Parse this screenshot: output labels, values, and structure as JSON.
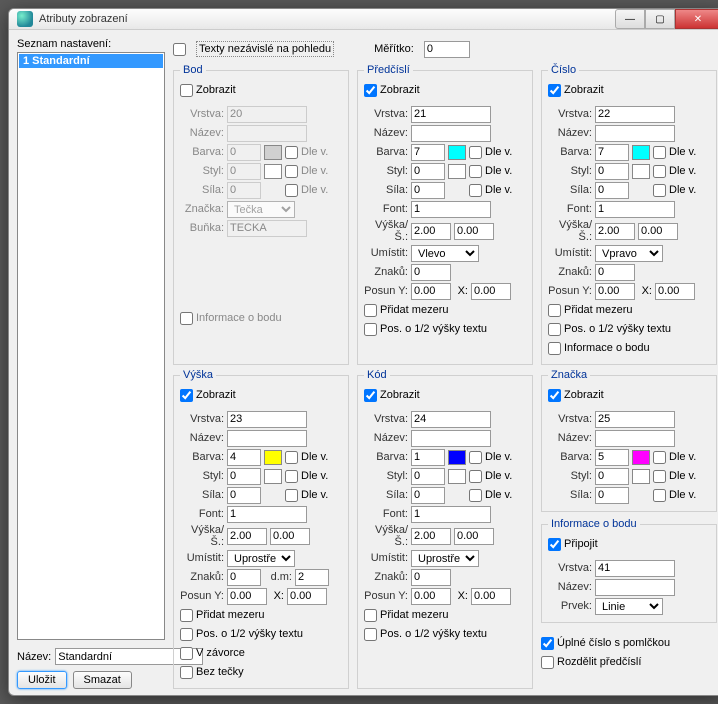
{
  "window": {
    "title": "Atributy zobrazení"
  },
  "left": {
    "label": "Seznam nastavení:",
    "list": [
      {
        "text": "1 Standardní"
      }
    ],
    "name_label": "Název:",
    "name_value": "Standardní",
    "save": "Uložit",
    "delete": "Smazat"
  },
  "top": {
    "text_independent": "Texty nezávislé na pohledu",
    "scale_label": "Měřítko:",
    "scale_value": "0"
  },
  "labels": {
    "zobrazit": "Zobrazit",
    "vrstva": "Vrstva:",
    "nazev": "Název:",
    "barva": "Barva:",
    "styl": "Styl:",
    "sila": "Síla:",
    "font": "Font:",
    "znacka": "Značka:",
    "bunka": "Buňka:",
    "vyska_s": "Výška/Š.:",
    "umistit": "Umístit:",
    "znaku": "Znaků:",
    "posun_y": "Posun Y:",
    "x": "X:",
    "dm": "d.m:",
    "dle_v": "Dle v.",
    "pridat_mezeru": "Přidat mezeru",
    "pos_half": "Pos. o 1/2 výšky textu",
    "info_bod": "Informace o bodu",
    "v_zavorce": "V závorce",
    "bez_tecky": "Bez tečky",
    "prvek": "Prvek:",
    "pripojit": "Připojit",
    "uplne_cislo": "Úplné číslo s pomlčkou",
    "rozdelit": "Rozdělit předčíslí"
  },
  "panels": {
    "bod": {
      "title": "Bod",
      "zobrazit": false,
      "disabled": true,
      "vrstva": "20",
      "barva": "0",
      "styl": "0",
      "sila": "0",
      "znacka": "Tečka",
      "bunka": "TECKA",
      "swatch": "#d0d0d0"
    },
    "predcisli": {
      "title": "Předčíslí",
      "zobrazit": true,
      "vrstva": "21",
      "barva": "7",
      "styl": "0",
      "sila": "0",
      "font": "1",
      "vyska": "2.00",
      "sirka": "0.00",
      "umistit": "Vlevo",
      "znaku": "0",
      "posun_y": "0.00",
      "posun_x": "0.00",
      "swatch": "#00ffff"
    },
    "cislo": {
      "title": "Číslo",
      "zobrazit": true,
      "vrstva": "22",
      "barva": "7",
      "styl": "0",
      "sila": "0",
      "font": "1",
      "vyska": "2.00",
      "sirka": "0.00",
      "umistit": "Vpravo",
      "znaku": "0",
      "posun_y": "0.00",
      "posun_x": "0.00",
      "swatch": "#00ffff"
    },
    "vyska": {
      "title": "Výška",
      "zobrazit": true,
      "vrstva": "23",
      "barva": "4",
      "styl": "0",
      "sila": "0",
      "font": "1",
      "vyska": "2.00",
      "sirka": "0.00",
      "umistit": "Uprostřed nah",
      "znaku": "0",
      "dm": "2",
      "posun_y": "0.00",
      "posun_x": "0.00",
      "swatch": "#ffff00"
    },
    "kod": {
      "title": "Kód",
      "zobrazit": true,
      "vrstva": "24",
      "barva": "1",
      "styl": "0",
      "sila": "0",
      "font": "1",
      "vyska": "2.00",
      "sirka": "0.00",
      "umistit": "Uprostřed dol",
      "znaku": "0",
      "posun_y": "0.00",
      "posun_x": "0.00",
      "swatch": "#0000ff"
    },
    "znacka": {
      "title": "Značka",
      "zobrazit": true,
      "vrstva": "25",
      "barva": "5",
      "styl": "0",
      "sila": "0",
      "swatch": "#ff00ff"
    },
    "info": {
      "title": "Informace o bodu",
      "pripojit": true,
      "vrstva": "41",
      "prvek": "Linie"
    }
  }
}
